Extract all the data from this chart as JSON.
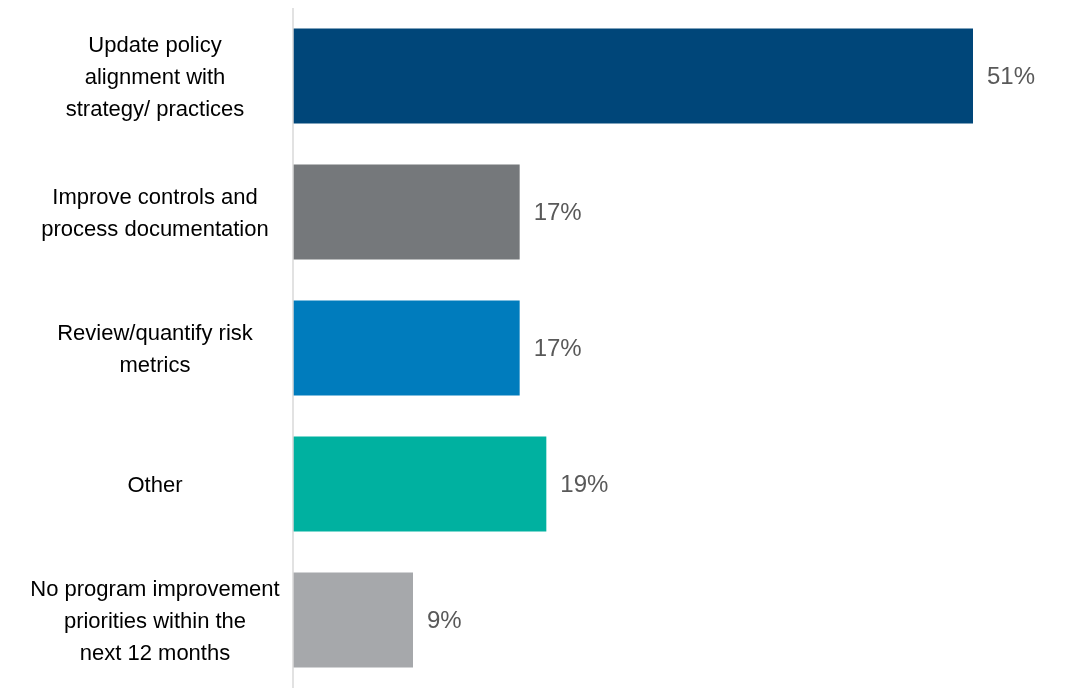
{
  "chart_data": {
    "type": "bar",
    "orientation": "horizontal",
    "categories": [
      "Update policy alignment with strategy/ practices",
      "Improve controls and process documentation",
      "Review/quantify risk metrics",
      "Other",
      "No program improvement priorities within the next 12 months"
    ],
    "values": [
      51,
      17,
      17,
      19,
      9
    ],
    "colors": [
      "#004679",
      "#75787b",
      "#007cbd",
      "#00b1a0",
      "#a6a8ab"
    ],
    "value_labels": [
      "51%",
      "17%",
      "17%",
      "19%",
      "9%"
    ],
    "tick_labels": "y",
    "grid": false,
    "legend": false
  }
}
